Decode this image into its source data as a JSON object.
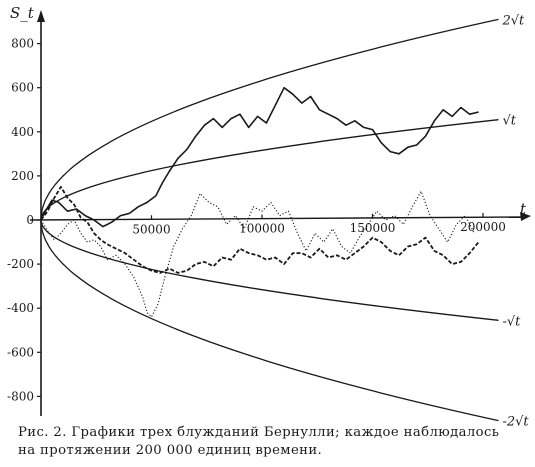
{
  "chart_data": {
    "type": "line",
    "title": "",
    "ylabel": "S_t",
    "xlabel": "t",
    "xlim": [
      0,
      200000
    ],
    "ylim": [
      -900,
      900
    ],
    "x_ticks": [
      50000,
      100000,
      150000,
      200000
    ],
    "x_tick_labels": [
      "50000",
      "100000",
      "150000",
      "200000"
    ],
    "y_ticks": [
      800,
      600,
      400,
      200,
      0,
      -200,
      -400,
      -600,
      -800
    ],
    "y_tick_labels": [
      "800",
      "600",
      "400",
      "200",
      "0",
      "-200",
      "-400",
      "-600",
      "-800"
    ],
    "grid": false,
    "envelopes": [
      {
        "label": "2√t",
        "coef": 2
      },
      {
        "label": "√t",
        "coef": 1
      },
      {
        "label": "-√t",
        "coef": -1
      },
      {
        "label": "-2√t",
        "coef": -2
      }
    ],
    "series": [
      {
        "style": "solid",
        "x": [
          0,
          2000,
          5000,
          8000,
          12000,
          16000,
          20000,
          24000,
          28000,
          32000,
          36000,
          40000,
          44000,
          48000,
          52000,
          55000,
          58000,
          62000,
          66000,
          70000,
          74000,
          78000,
          82000,
          86000,
          90000,
          94000,
          98000,
          102000,
          106000,
          110000,
          114000,
          118000,
          122000,
          126000,
          130000,
          134000,
          138000,
          142000,
          146000,
          150000,
          154000,
          158000,
          162000,
          166000,
          170000,
          174000,
          178000,
          182000,
          186000,
          190000,
          194000,
          198000
        ],
        "y": [
          0,
          40,
          90,
          80,
          40,
          50,
          20,
          0,
          -30,
          -10,
          20,
          30,
          60,
          80,
          110,
          170,
          220,
          280,
          320,
          380,
          430,
          460,
          420,
          460,
          480,
          420,
          470,
          440,
          520,
          600,
          570,
          530,
          560,
          500,
          480,
          460,
          430,
          450,
          420,
          410,
          350,
          310,
          300,
          330,
          340,
          380,
          450,
          500,
          470,
          510,
          480,
          490
        ]
      },
      {
        "style": "dashed",
        "x": [
          0,
          3000,
          6000,
          9000,
          12000,
          15000,
          18000,
          21000,
          24000,
          27000,
          30000,
          34000,
          38000,
          42000,
          46000,
          50000,
          54000,
          58000,
          62000,
          66000,
          70000,
          74000,
          78000,
          82000,
          86000,
          90000,
          94000,
          98000,
          102000,
          106000,
          110000,
          114000,
          118000,
          122000,
          126000,
          130000,
          134000,
          138000,
          142000,
          146000,
          150000,
          154000,
          158000,
          162000,
          166000,
          170000,
          174000,
          178000,
          182000,
          186000,
          190000,
          194000,
          198000
        ],
        "y": [
          0,
          40,
          100,
          150,
          100,
          70,
          10,
          -10,
          -60,
          -90,
          -110,
          -130,
          -150,
          -180,
          -210,
          -230,
          -240,
          -220,
          -240,
          -230,
          -200,
          -190,
          -210,
          -170,
          -180,
          -130,
          -150,
          -160,
          -180,
          -170,
          -200,
          -150,
          -150,
          -170,
          -130,
          -170,
          -160,
          -180,
          -150,
          -120,
          -80,
          -100,
          -140,
          -160,
          -120,
          -110,
          -80,
          -140,
          -160,
          -200,
          -190,
          -150,
          -100
        ]
      },
      {
        "style": "dotted",
        "x": [
          0,
          3000,
          6000,
          9000,
          12000,
          15000,
          18000,
          21000,
          24000,
          27000,
          30000,
          34000,
          38000,
          42000,
          46000,
          48000,
          50000,
          53000,
          56000,
          60000,
          64000,
          68000,
          72000,
          76000,
          80000,
          84000,
          88000,
          92000,
          96000,
          100000,
          104000,
          108000,
          112000,
          116000,
          120000,
          124000,
          128000,
          132000,
          136000,
          140000,
          144000,
          148000,
          152000,
          156000,
          160000,
          164000,
          168000,
          172000,
          176000,
          180000,
          184000,
          188000,
          192000,
          196000
        ],
        "y": [
          0,
          -50,
          -90,
          -60,
          -20,
          0,
          -60,
          -100,
          -90,
          -120,
          -180,
          -160,
          -200,
          -260,
          -350,
          -420,
          -440,
          -380,
          -260,
          -120,
          -40,
          20,
          120,
          80,
          60,
          -20,
          20,
          -40,
          60,
          40,
          80,
          20,
          40,
          -60,
          -140,
          -60,
          -100,
          -40,
          -120,
          -150,
          -80,
          -20,
          40,
          0,
          20,
          -20,
          60,
          130,
          20,
          -40,
          -100,
          -20,
          20,
          -60
        ]
      }
    ]
  },
  "caption": "Рис. 2. Графики трех блужданий Бернулли; каждое наблюдалось на протяжении 200 000 единиц времени."
}
